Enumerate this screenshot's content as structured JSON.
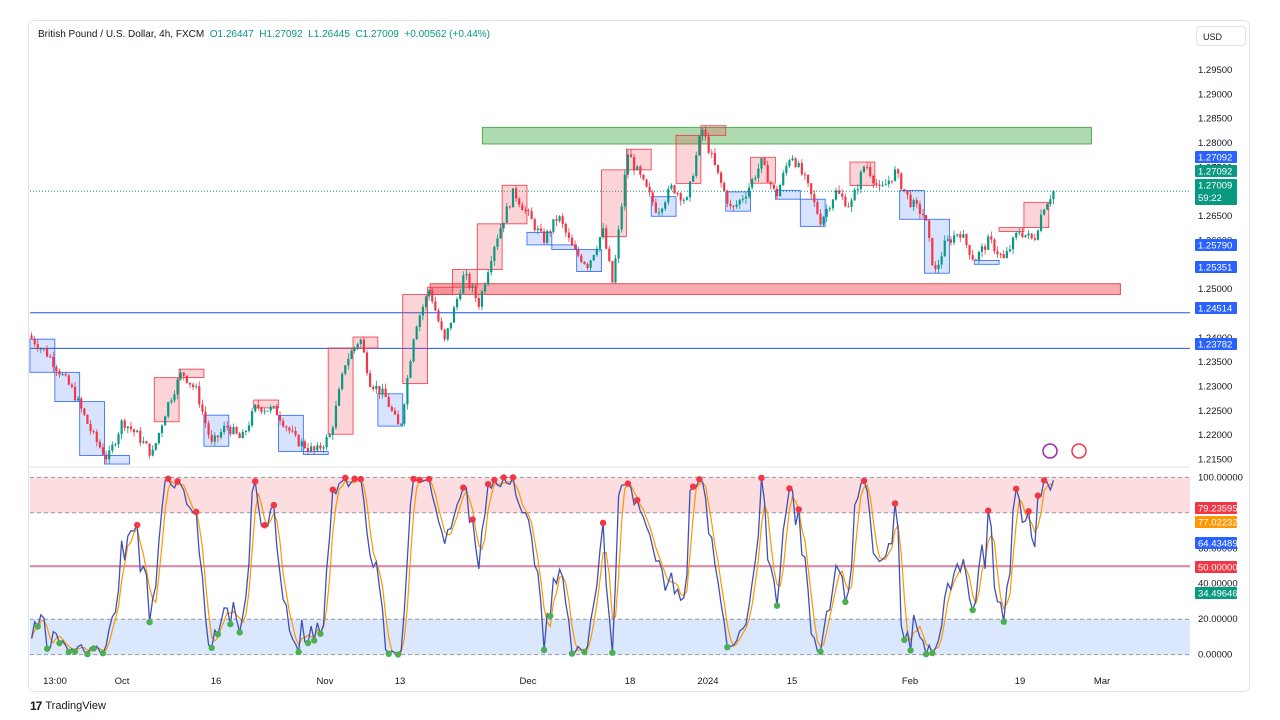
{
  "header": {
    "symbol": "British Pound / U.S. Dollar, 4h, FXCM",
    "open": "O1.26447",
    "high": "H1.27092",
    "low": "L1.26445",
    "close": "C1.27009",
    "change": "+0.00562 (+0.44%)"
  },
  "currency_button": "USD",
  "footer": {
    "logo": "17",
    "brand": "TradingView"
  },
  "colors": {
    "up": "#089981",
    "down": "#f23645",
    "zone_green": "#a5d6a7",
    "zone_red": "#f7a1a8",
    "level_line": "#2962ff",
    "stoch_k": "#3f51b5",
    "stoch_d": "#ff9800",
    "overbought_band": "#fcdde0",
    "oversold_band": "#dbe7fd"
  },
  "chart_data": [
    {
      "type": "candlestick",
      "title": "British Pound / U.S. Dollar, 4h, FXCM",
      "y_axis": {
        "side": "right",
        "range": [
          1.2145,
          1.2995
        ],
        "ticks": [
          "1.29500",
          "1.29000",
          "1.28500",
          "1.28000",
          "1.27500",
          "1.26500",
          "1.26000",
          "1.25500",
          "1.25000",
          "1.24000",
          "1.23500",
          "1.23000",
          "1.22500",
          "1.22000",
          "1.21500"
        ]
      },
      "x_axis": {
        "tick_labels": [
          "13:00",
          "Oct",
          "16",
          "Nov",
          "13",
          "Dec",
          "18",
          "2024",
          "15",
          "Feb",
          "19",
          "Mar"
        ]
      },
      "price_tags": [
        {
          "value": 1.27092,
          "label": "1.27092",
          "color": "#2962ff"
        },
        {
          "value": 1.27092,
          "label": "1.27092",
          "color": "#089981"
        },
        {
          "value": 1.27009,
          "label": "1.27009",
          "sub": "59:22",
          "color": "#089981"
        },
        {
          "value": 1.2579,
          "label": "1.25790",
          "color": "#2962ff"
        },
        {
          "value": 1.25351,
          "label": "1.25351",
          "color": "#2962ff"
        },
        {
          "value": 1.24514,
          "label": "1.24514",
          "color": "#2962ff"
        },
        {
          "value": 1.23782,
          "label": "1.23782",
          "color": "#2962ff"
        }
      ],
      "horizontal_lines": [
        1.24514,
        1.23782
      ],
      "zones": [
        {
          "kind": "resistance",
          "low": 1.2798,
          "high": 1.2832,
          "from": 0.39,
          "to": 0.915
        },
        {
          "kind": "support",
          "low": 1.2489,
          "high": 1.2511,
          "from": 0.345,
          "to": 0.94
        }
      ],
      "close_path": [
        [
          0.0,
          1.2405
        ],
        [
          0.02,
          1.2365
        ],
        [
          0.045,
          1.229
        ],
        [
          0.065,
          1.22
        ],
        [
          0.08,
          1.215
        ],
        [
          0.095,
          1.223
        ],
        [
          0.11,
          1.22
        ],
        [
          0.125,
          1.216
        ],
        [
          0.14,
          1.226
        ],
        [
          0.155,
          1.233
        ],
        [
          0.17,
          1.229
        ],
        [
          0.185,
          1.218
        ],
        [
          0.2,
          1.222
        ],
        [
          0.215,
          1.219
        ],
        [
          0.23,
          1.226
        ],
        [
          0.25,
          1.225
        ],
        [
          0.27,
          1.219
        ],
        [
          0.29,
          1.2165
        ],
        [
          0.305,
          1.22
        ],
        [
          0.32,
          1.235
        ],
        [
          0.335,
          1.24
        ],
        [
          0.345,
          1.231
        ],
        [
          0.36,
          1.228
        ],
        [
          0.375,
          1.221
        ],
        [
          0.39,
          1.242
        ],
        [
          0.405,
          1.25
        ],
        [
          0.42,
          1.239
        ],
        [
          0.44,
          1.253
        ],
        [
          0.455,
          1.247
        ],
        [
          0.47,
          1.259
        ],
        [
          0.49,
          1.27
        ],
        [
          0.505,
          1.265
        ],
        [
          0.52,
          1.26
        ],
        [
          0.535,
          1.265
        ],
        [
          0.55,
          1.258
        ],
        [
          0.565,
          1.255
        ],
        [
          0.58,
          1.262
        ],
        [
          0.59,
          1.251
        ],
        [
          0.605,
          1.278
        ],
        [
          0.62,
          1.272
        ],
        [
          0.635,
          1.266
        ],
        [
          0.65,
          1.271
        ],
        [
          0.665,
          1.268
        ],
        [
          0.68,
          1.283
        ],
        [
          0.695,
          1.274
        ],
        [
          0.71,
          1.266
        ],
        [
          0.725,
          1.27
        ],
        [
          0.74,
          1.276
        ],
        [
          0.755,
          1.269
        ],
        [
          0.77,
          1.278
        ],
        [
          0.785,
          1.272
        ],
        [
          0.8,
          1.264
        ],
        [
          0.815,
          1.27
        ],
        [
          0.83,
          1.267
        ],
        [
          0.845,
          1.276
        ],
        [
          0.86,
          1.27
        ],
        [
          0.875,
          1.274
        ],
        [
          0.89,
          1.268
        ],
        [
          0.905,
          1.265
        ],
        [
          0.915,
          1.253
        ],
        [
          0.925,
          1.259
        ],
        [
          0.94,
          1.262
        ],
        [
          0.955,
          1.256
        ],
        [
          0.97,
          1.26
        ],
        [
          0.985,
          1.256
        ],
        [
          1.0,
          1.262
        ],
        [
          1.015,
          1.26
        ],
        [
          1.025,
          1.267
        ],
        [
          1.035,
          1.2701
        ]
      ]
    },
    {
      "type": "line",
      "title": "Stochastic",
      "y_axis": {
        "range": [
          -3,
          103
        ],
        "ticks": [
          "100.00000",
          "60.00000",
          "40.00000",
          "20.00000",
          "0.00000"
        ]
      },
      "levels": [
        100,
        80,
        50,
        20,
        0
      ],
      "value_tags": [
        {
          "value": 79.23595,
          "label": "79.23595",
          "color": "#f23645"
        },
        {
          "value": 77.02232,
          "label": "77.02232",
          "color": "#ff9800"
        },
        {
          "value": 64.43489,
          "label": "64.43489",
          "color": "#2962ff"
        },
        {
          "value": 50.0,
          "label": "50.00000",
          "color": "#f23645"
        },
        {
          "value": 34.49646,
          "label": "34.49646",
          "color": "#089981"
        }
      ],
      "series": [
        {
          "name": "K",
          "color": "#3f51b5"
        },
        {
          "name": "D",
          "color": "#ff9800"
        }
      ]
    }
  ]
}
